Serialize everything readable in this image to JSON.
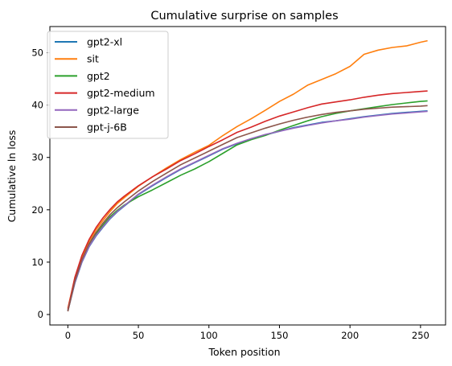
{
  "chart_data": {
    "type": "line",
    "title": "Cumulative surprise on samples",
    "xlabel": "Token position",
    "ylabel": "Cumulative ln loss",
    "xlim": [
      -12.75,
      267.75
    ],
    "ylim": [
      -2.0,
      55.0
    ],
    "xticks": [
      0,
      50,
      100,
      150,
      200,
      250
    ],
    "yticks": [
      0,
      10,
      20,
      30,
      40,
      50
    ],
    "grid": false,
    "legend_position": "top-left",
    "x": [
      0,
      5,
      10,
      15,
      20,
      25,
      30,
      35,
      40,
      50,
      60,
      70,
      80,
      90,
      100,
      110,
      120,
      130,
      140,
      150,
      160,
      170,
      180,
      190,
      200,
      210,
      220,
      230,
      240,
      250,
      255
    ],
    "series": [
      {
        "name": "gpt2-xl",
        "color": "#1f77b4",
        "values": [
          0.7,
          6.0,
          10.0,
          12.9,
          15.0,
          16.7,
          18.3,
          19.6,
          20.7,
          22.9,
          24.6,
          26.2,
          27.7,
          29.0,
          30.3,
          31.6,
          32.6,
          33.5,
          34.3,
          35.0,
          35.7,
          36.2,
          36.7,
          37.0,
          37.4,
          37.8,
          38.1,
          38.4,
          38.6,
          38.8,
          38.9
        ]
      },
      {
        "name": "sit",
        "color": "#ff7f0e",
        "values": [
          1.2,
          7.0,
          11.0,
          14.0,
          16.2,
          18.0,
          19.7,
          21.2,
          22.3,
          24.5,
          26.3,
          28.0,
          29.6,
          31.0,
          32.3,
          34.2,
          35.9,
          37.4,
          39.0,
          40.7,
          42.1,
          43.8,
          44.9,
          46.0,
          47.4,
          49.7,
          50.5,
          51.0,
          51.3,
          52.0,
          52.3
        ]
      },
      {
        "name": "gpt2",
        "color": "#2ca02c",
        "values": [
          0.8,
          6.3,
          10.3,
          13.3,
          15.4,
          17.1,
          18.7,
          19.9,
          20.9,
          22.5,
          23.8,
          25.2,
          26.6,
          27.8,
          29.2,
          30.8,
          32.4,
          33.4,
          34.2,
          35.2,
          36.1,
          37.0,
          37.8,
          38.4,
          38.9,
          39.3,
          39.7,
          40.1,
          40.4,
          40.7,
          40.8
        ]
      },
      {
        "name": "gpt2-medium",
        "color": "#d62728",
        "values": [
          1.0,
          7.1,
          11.3,
          14.3,
          16.6,
          18.5,
          20.1,
          21.5,
          22.6,
          24.6,
          26.3,
          27.8,
          29.4,
          30.7,
          32.1,
          33.4,
          34.8,
          35.8,
          36.9,
          37.9,
          38.7,
          39.5,
          40.2,
          40.6,
          41.0,
          41.5,
          41.9,
          42.2,
          42.4,
          42.6,
          42.7
        ]
      },
      {
        "name": "gpt2-large",
        "color": "#9467bd",
        "values": [
          0.7,
          6.1,
          10.1,
          13.0,
          15.1,
          16.8,
          18.4,
          19.7,
          20.8,
          23.0,
          24.7,
          26.3,
          27.8,
          29.1,
          30.4,
          31.7,
          32.7,
          33.6,
          34.4,
          35.0,
          35.6,
          36.1,
          36.6,
          37.0,
          37.3,
          37.7,
          38.0,
          38.3,
          38.5,
          38.7,
          38.8
        ]
      },
      {
        "name": "gpt-j-6B",
        "color": "#8c564b",
        "values": [
          0.6,
          6.4,
          10.5,
          13.5,
          15.7,
          17.5,
          19.1,
          20.4,
          21.5,
          23.6,
          25.4,
          27.0,
          28.6,
          29.9,
          31.2,
          32.5,
          33.8,
          34.7,
          35.6,
          36.4,
          37.1,
          37.7,
          38.2,
          38.6,
          38.9,
          39.2,
          39.4,
          39.6,
          39.7,
          39.8,
          39.9
        ]
      }
    ]
  }
}
